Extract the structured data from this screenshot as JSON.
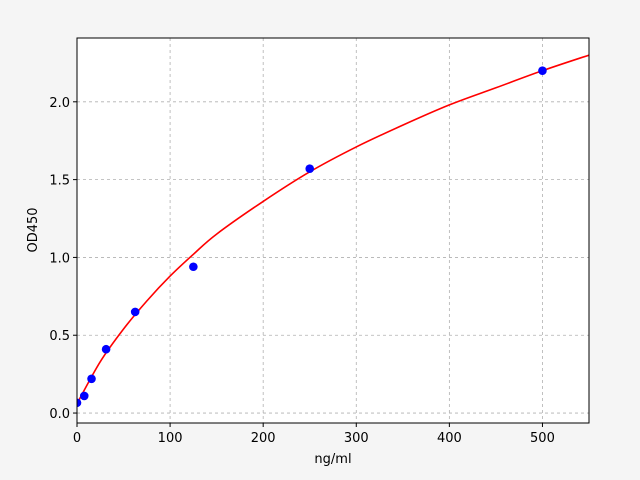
{
  "chart_data": {
    "type": "scatter",
    "title": "",
    "xlabel": "ng/ml",
    "ylabel": "OD450",
    "xlim": [
      0,
      550
    ],
    "ylim": [
      -0.064,
      2.41
    ],
    "x_ticks": [
      0,
      100,
      200,
      300,
      400,
      500
    ],
    "y_ticks": [
      0.0,
      0.5,
      1.0,
      1.5,
      2.0
    ],
    "x_tick_labels": [
      "0",
      "100",
      "200",
      "300",
      "400",
      "500"
    ],
    "y_tick_labels": [
      "0.0",
      "0.5",
      "1.0",
      "1.5",
      "2.0"
    ],
    "grid": true,
    "points": {
      "x": [
        0,
        7.8,
        15.6,
        31.25,
        62.5,
        125,
        250,
        500
      ],
      "y": [
        0.066,
        0.11,
        0.22,
        0.41,
        0.65,
        0.94,
        1.57,
        2.2
      ],
      "color": "#0000ff"
    },
    "fit_curve": {
      "x": [
        0,
        25,
        50,
        75,
        100,
        125,
        150,
        200,
        250,
        300,
        350,
        400,
        450,
        500,
        550
      ],
      "y": [
        0.06,
        0.33,
        0.54,
        0.72,
        0.88,
        1.02,
        1.15,
        1.36,
        1.55,
        1.71,
        1.85,
        1.98,
        2.09,
        2.2,
        2.3
      ],
      "color": "#ff0000"
    }
  }
}
